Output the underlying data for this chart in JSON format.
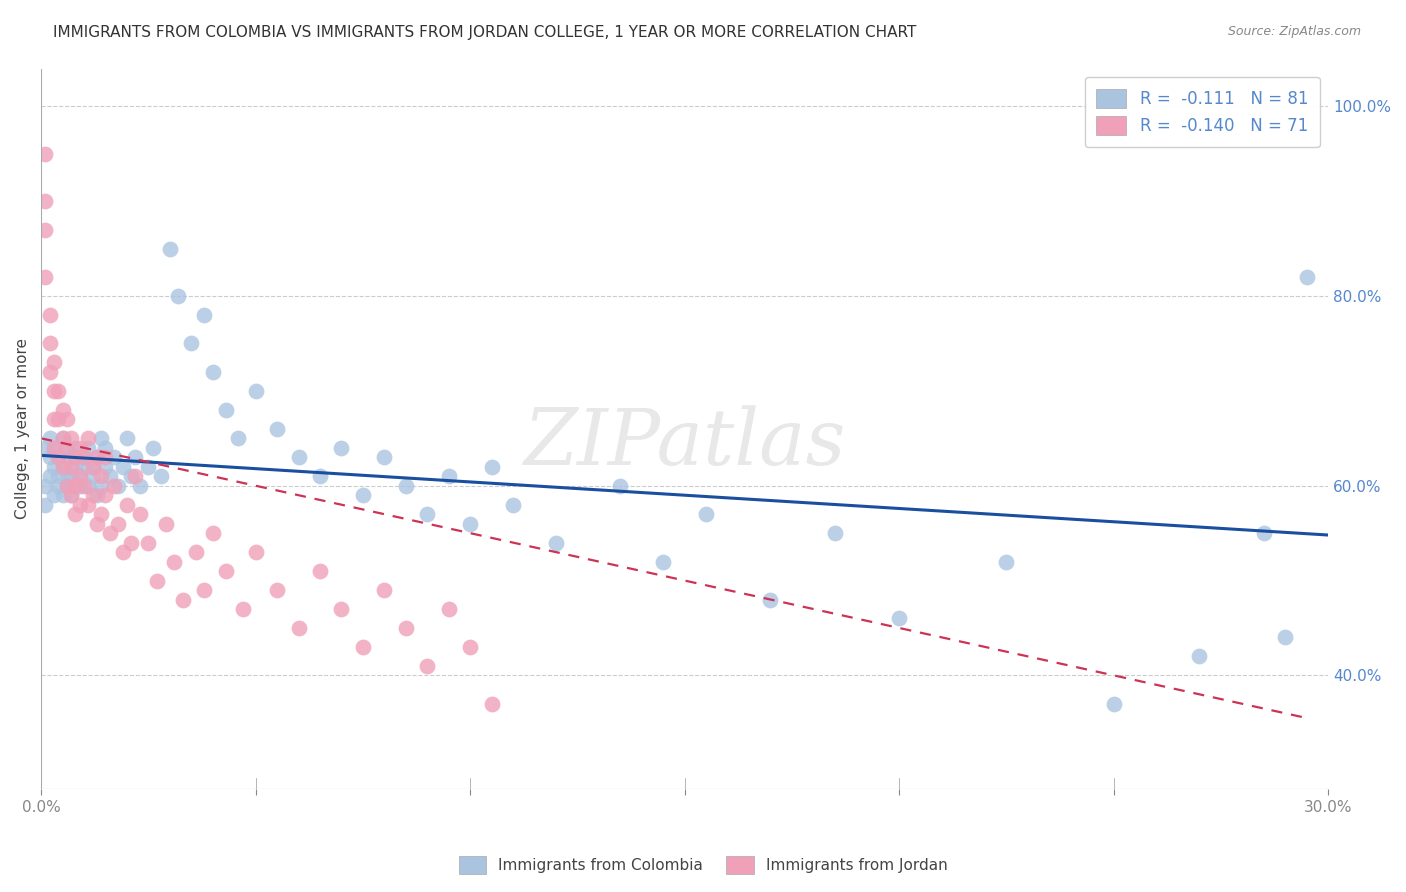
{
  "title": "IMMIGRANTS FROM COLOMBIA VS IMMIGRANTS FROM JORDAN COLLEGE, 1 YEAR OR MORE CORRELATION CHART",
  "source": "Source: ZipAtlas.com",
  "ylabel": "College, 1 year or more",
  "xlim": [
    0.0,
    0.3
  ],
  "ylim": [
    0.28,
    1.04
  ],
  "xticks": [
    0.0,
    0.05,
    0.1,
    0.15,
    0.2,
    0.25,
    0.3
  ],
  "xtick_labels": [
    "0.0%",
    "",
    "",
    "",
    "",
    "",
    "30.0%"
  ],
  "yticks_right": [
    0.4,
    0.6,
    0.8,
    1.0
  ],
  "ytick_labels_right": [
    "40.0%",
    "60.0%",
    "80.0%",
    "100.0%"
  ],
  "colombia_color": "#aac4e0",
  "jordan_color": "#f0a0b8",
  "trend_colombia_color": "#1a4fa0",
  "trend_jordan_color": "#cc3355",
  "colombia_R": -0.111,
  "colombia_N": 81,
  "jordan_R": -0.14,
  "jordan_N": 71,
  "colombia_trend_x": [
    0.0,
    0.3
  ],
  "colombia_trend_y": [
    0.632,
    0.548
  ],
  "jordan_trend_x": [
    0.0,
    0.295
  ],
  "jordan_trend_y": [
    0.65,
    0.355
  ],
  "colombia_scatter_x": [
    0.001,
    0.001,
    0.001,
    0.002,
    0.002,
    0.002,
    0.003,
    0.003,
    0.003,
    0.004,
    0.004,
    0.004,
    0.005,
    0.005,
    0.005,
    0.006,
    0.006,
    0.006,
    0.007,
    0.007,
    0.007,
    0.008,
    0.008,
    0.009,
    0.009,
    0.01,
    0.01,
    0.011,
    0.011,
    0.012,
    0.012,
    0.013,
    0.013,
    0.014,
    0.014,
    0.015,
    0.015,
    0.016,
    0.017,
    0.018,
    0.019,
    0.02,
    0.021,
    0.022,
    0.023,
    0.025,
    0.026,
    0.028,
    0.03,
    0.032,
    0.035,
    0.038,
    0.04,
    0.043,
    0.046,
    0.05,
    0.055,
    0.06,
    0.065,
    0.07,
    0.075,
    0.08,
    0.085,
    0.09,
    0.095,
    0.1,
    0.105,
    0.11,
    0.12,
    0.135,
    0.145,
    0.155,
    0.17,
    0.185,
    0.2,
    0.225,
    0.25,
    0.27,
    0.285,
    0.29,
    0.295
  ],
  "colombia_scatter_y": [
    0.64,
    0.6,
    0.58,
    0.63,
    0.61,
    0.65,
    0.62,
    0.59,
    0.64,
    0.61,
    0.63,
    0.6,
    0.62,
    0.65,
    0.59,
    0.61,
    0.64,
    0.6,
    0.63,
    0.61,
    0.59,
    0.64,
    0.62,
    0.61,
    0.6,
    0.63,
    0.62,
    0.64,
    0.6,
    0.62,
    0.61,
    0.63,
    0.59,
    0.65,
    0.6,
    0.62,
    0.64,
    0.61,
    0.63,
    0.6,
    0.62,
    0.65,
    0.61,
    0.63,
    0.6,
    0.62,
    0.64,
    0.61,
    0.85,
    0.8,
    0.75,
    0.78,
    0.72,
    0.68,
    0.65,
    0.7,
    0.66,
    0.63,
    0.61,
    0.64,
    0.59,
    0.63,
    0.6,
    0.57,
    0.61,
    0.56,
    0.62,
    0.58,
    0.54,
    0.6,
    0.52,
    0.57,
    0.48,
    0.55,
    0.46,
    0.52,
    0.37,
    0.42,
    0.55,
    0.44,
    0.82
  ],
  "jordan_scatter_x": [
    0.001,
    0.001,
    0.001,
    0.001,
    0.002,
    0.002,
    0.002,
    0.003,
    0.003,
    0.003,
    0.003,
    0.004,
    0.004,
    0.004,
    0.005,
    0.005,
    0.005,
    0.006,
    0.006,
    0.006,
    0.007,
    0.007,
    0.007,
    0.008,
    0.008,
    0.008,
    0.009,
    0.009,
    0.009,
    0.01,
    0.01,
    0.011,
    0.011,
    0.012,
    0.012,
    0.013,
    0.013,
    0.014,
    0.014,
    0.015,
    0.015,
    0.016,
    0.017,
    0.018,
    0.019,
    0.02,
    0.021,
    0.022,
    0.023,
    0.025,
    0.027,
    0.029,
    0.031,
    0.033,
    0.036,
    0.038,
    0.04,
    0.043,
    0.047,
    0.05,
    0.055,
    0.06,
    0.065,
    0.07,
    0.075,
    0.08,
    0.085,
    0.09,
    0.095,
    0.1,
    0.105
  ],
  "jordan_scatter_y": [
    0.95,
    0.9,
    0.87,
    0.82,
    0.78,
    0.75,
    0.72,
    0.7,
    0.67,
    0.64,
    0.73,
    0.7,
    0.67,
    0.63,
    0.68,
    0.65,
    0.62,
    0.67,
    0.64,
    0.6,
    0.65,
    0.62,
    0.59,
    0.63,
    0.6,
    0.57,
    0.64,
    0.61,
    0.58,
    0.63,
    0.6,
    0.65,
    0.58,
    0.62,
    0.59,
    0.63,
    0.56,
    0.61,
    0.57,
    0.63,
    0.59,
    0.55,
    0.6,
    0.56,
    0.53,
    0.58,
    0.54,
    0.61,
    0.57,
    0.54,
    0.5,
    0.56,
    0.52,
    0.48,
    0.53,
    0.49,
    0.55,
    0.51,
    0.47,
    0.53,
    0.49,
    0.45,
    0.51,
    0.47,
    0.43,
    0.49,
    0.45,
    0.41,
    0.47,
    0.43,
    0.37
  ],
  "watermark": "ZIPatlas",
  "background_color": "#ffffff",
  "grid_color": "#cccccc",
  "title_fontsize": 11,
  "axis_label_fontsize": 11,
  "tick_fontsize": 11,
  "tick_color": "#5588cc"
}
